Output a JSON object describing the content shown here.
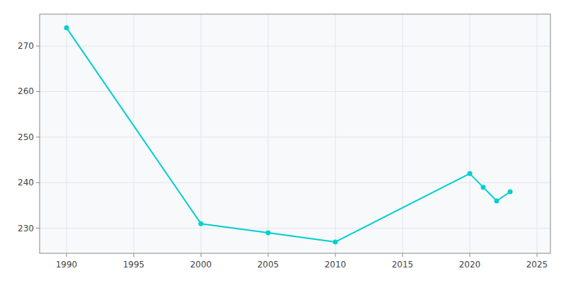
{
  "chart_data": {
    "type": "line",
    "x": [
      1990,
      2000,
      2005,
      2010,
      2020,
      2021,
      2022,
      2023
    ],
    "values": [
      274,
      231,
      229,
      227,
      242,
      239,
      236,
      238
    ],
    "color": "#00CED1",
    "marker": "circle",
    "xlim": [
      1988,
      2026
    ],
    "ylim": [
      224.5,
      277
    ],
    "xticks": [
      1990,
      1995,
      2000,
      2005,
      2010,
      2015,
      2020,
      2025
    ],
    "yticks": [
      230,
      240,
      250,
      260,
      270
    ],
    "grid": true
  }
}
